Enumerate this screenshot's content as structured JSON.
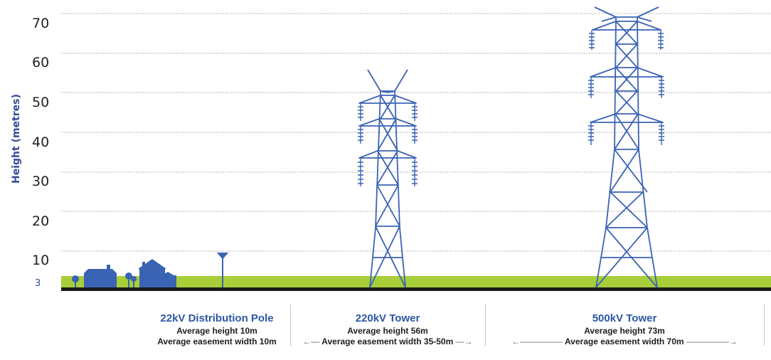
{
  "axis": {
    "ylabel": "Height (metres)",
    "ticks": [
      "70",
      "60",
      "50",
      "40",
      "30",
      "20",
      "10"
    ],
    "ground_tick": "3"
  },
  "colors": {
    "structure": "#3a63b4",
    "ground": "#a8ce3a",
    "baseline": "#1a1a1a",
    "gridline": "#9a9a9a",
    "title": "#2b57a5"
  },
  "structures": [
    {
      "title": "22kV Distribution Pole",
      "height_line": "Average height 10m",
      "easement_line": "Average easement width 10m"
    },
    {
      "title": "220kV Tower",
      "height_line": "Average height 56m",
      "easement_prefix": "Average easement width",
      "easement_value": "35-50m"
    },
    {
      "title": "500kV Tower",
      "height_line": "Average height 73m",
      "easement_line": "Average easement width 70m"
    }
  ]
}
